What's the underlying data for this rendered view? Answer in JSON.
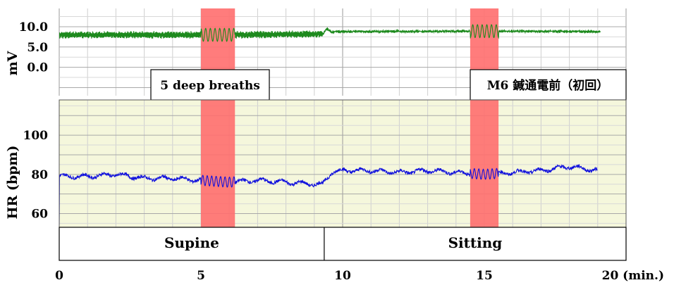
{
  "chart_data": [
    {
      "type": "line",
      "title": "",
      "ylabel": "mV",
      "xlim": [
        0,
        20
      ],
      "ylim": [
        -7,
        14.5
      ],
      "yticks": [
        "10.0",
        "5.0",
        "0.0"
      ],
      "ytick_values": [
        10,
        5,
        0
      ],
      "grid": true,
      "line_color": "#008000",
      "series": [
        {
          "x": [
            0,
            5,
            6.2,
            9.3,
            9.45,
            9.6,
            10,
            14.5,
            15.5,
            19.1
          ],
          "values": [
            8,
            8,
            8,
            8.2,
            9.5,
            8.7,
            8.8,
            8.9,
            8.9,
            8.8
          ]
        }
      ],
      "annotations": [
        "5 deep breaths",
        "M6 鍼通電前（初回）"
      ]
    },
    {
      "type": "line",
      "title": "",
      "ylabel": "HR (bpm)",
      "xlim": [
        0,
        20
      ],
      "ylim": [
        53,
        118
      ],
      "yticks": [
        "100",
        "80",
        "60"
      ],
      "ytick_values": [
        100,
        80,
        60
      ],
      "grid": true,
      "background": "#f5f7dc",
      "line_color": "#0000dd",
      "series": [
        {
          "x": [
            0,
            1,
            2,
            3,
            4,
            5,
            6,
            7,
            8,
            9,
            9.3,
            9.6,
            10,
            11,
            12,
            13,
            14,
            15,
            16,
            17,
            18,
            19
          ],
          "values": [
            79,
            79,
            80,
            78,
            78,
            77,
            76,
            77,
            76,
            75,
            75,
            81,
            82,
            82,
            81,
            82,
            81,
            80,
            81,
            82,
            84,
            82
          ]
        }
      ]
    }
  ],
  "shaded_regions": [
    {
      "x": [
        5.0,
        6.2
      ],
      "color": "#ff6e6e"
    },
    {
      "x": [
        14.5,
        15.5
      ],
      "color": "#ff6e6e"
    }
  ],
  "x_axis": {
    "ticks": [
      0,
      5,
      10,
      15
    ],
    "tick_labels": [
      "0",
      "5",
      "10",
      "15"
    ],
    "end_label": "20 (min.)"
  },
  "positions": [
    {
      "label": "Supine",
      "range": [
        0,
        9.35
      ]
    },
    {
      "label": "Sitting",
      "range": [
        9.35,
        20
      ]
    }
  ]
}
